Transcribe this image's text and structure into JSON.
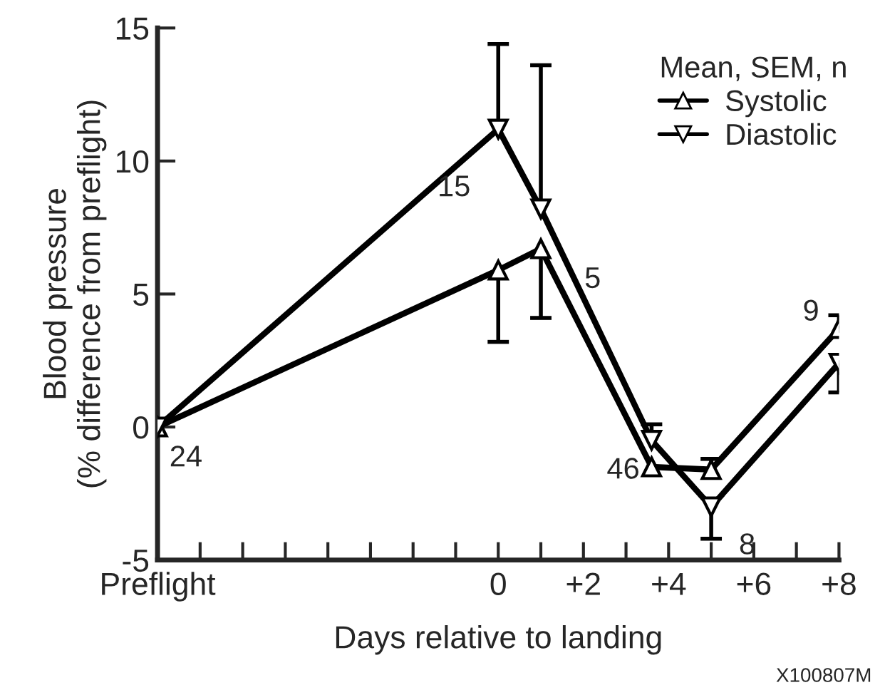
{
  "chart_data": {
    "type": "line",
    "xlabel": "Days relative to landing",
    "ylabel": "Blood pressure\n(% difference from preflight)",
    "legend_title": "Mean, SEM, n",
    "legend": "top right",
    "grid": false,
    "line_style": "solid",
    "xlim": [
      -8,
      8
    ],
    "ylim": [
      -5,
      15
    ],
    "yticks": [
      -5,
      0,
      5,
      10,
      15
    ],
    "xticks": [
      {
        "value": -8,
        "label": "Preflight"
      },
      {
        "value": -7,
        "label": null
      },
      {
        "value": -6,
        "label": null
      },
      {
        "value": -5,
        "label": null
      },
      {
        "value": -4,
        "label": null
      },
      {
        "value": -3,
        "label": null
      },
      {
        "value": -2,
        "label": null
      },
      {
        "value": -1,
        "label": null
      },
      0,
      {
        "value": 1,
        "label": null
      },
      {
        "value": 2,
        "label": "+2"
      },
      {
        "value": 3,
        "label": null
      },
      {
        "value": 4,
        "label": "+4"
      },
      {
        "value": 5,
        "label": null
      },
      {
        "value": 6,
        "label": "+6"
      },
      {
        "value": 7,
        "label": null
      },
      {
        "value": 8,
        "label": "+8"
      }
    ],
    "series": [
      {
        "name": "Systolic",
        "color": "#000000",
        "marker": "triangle",
        "x": [
          -8,
          0,
          1,
          3.6,
          5,
          8
        ],
        "values": [
          0,
          5.9,
          6.7,
          -1.5,
          -1.6,
          3.7
        ],
        "errors": [
          null,
          [
            3.2,
            5.9
          ],
          [
            4.1,
            6.7
          ],
          null,
          [
            -1.6,
            -1.2
          ],
          [
            3.7,
            4.2
          ]
        ]
      },
      {
        "name": "Diastolic",
        "color": "#000000",
        "marker": "triangle_down",
        "x": [
          -8,
          0,
          1,
          3.6,
          5,
          8
        ],
        "values": [
          0,
          11.2,
          8.2,
          -0.5,
          -3.0,
          2.4
        ],
        "errors": [
          null,
          [
            11.2,
            14.4
          ],
          [
            8.2,
            13.6
          ],
          [
            -0.5,
            0.1
          ],
          [
            -4.2,
            -3.0
          ],
          [
            1.3,
            2.4
          ]
        ]
      }
    ],
    "annotations": [
      {
        "text": "24",
        "x": -8,
        "y": 0
      },
      {
        "text": "15",
        "x": 0,
        "y": 11.2
      },
      {
        "text": "5",
        "x": 1,
        "y": 8.2
      },
      {
        "text": "46",
        "x": 3.6,
        "y": -1.5
      },
      {
        "text": "8",
        "x": 5,
        "y": -3.0
      },
      {
        "text": "9",
        "x": 8,
        "y": 3.7
      },
      "X100807M"
    ]
  }
}
